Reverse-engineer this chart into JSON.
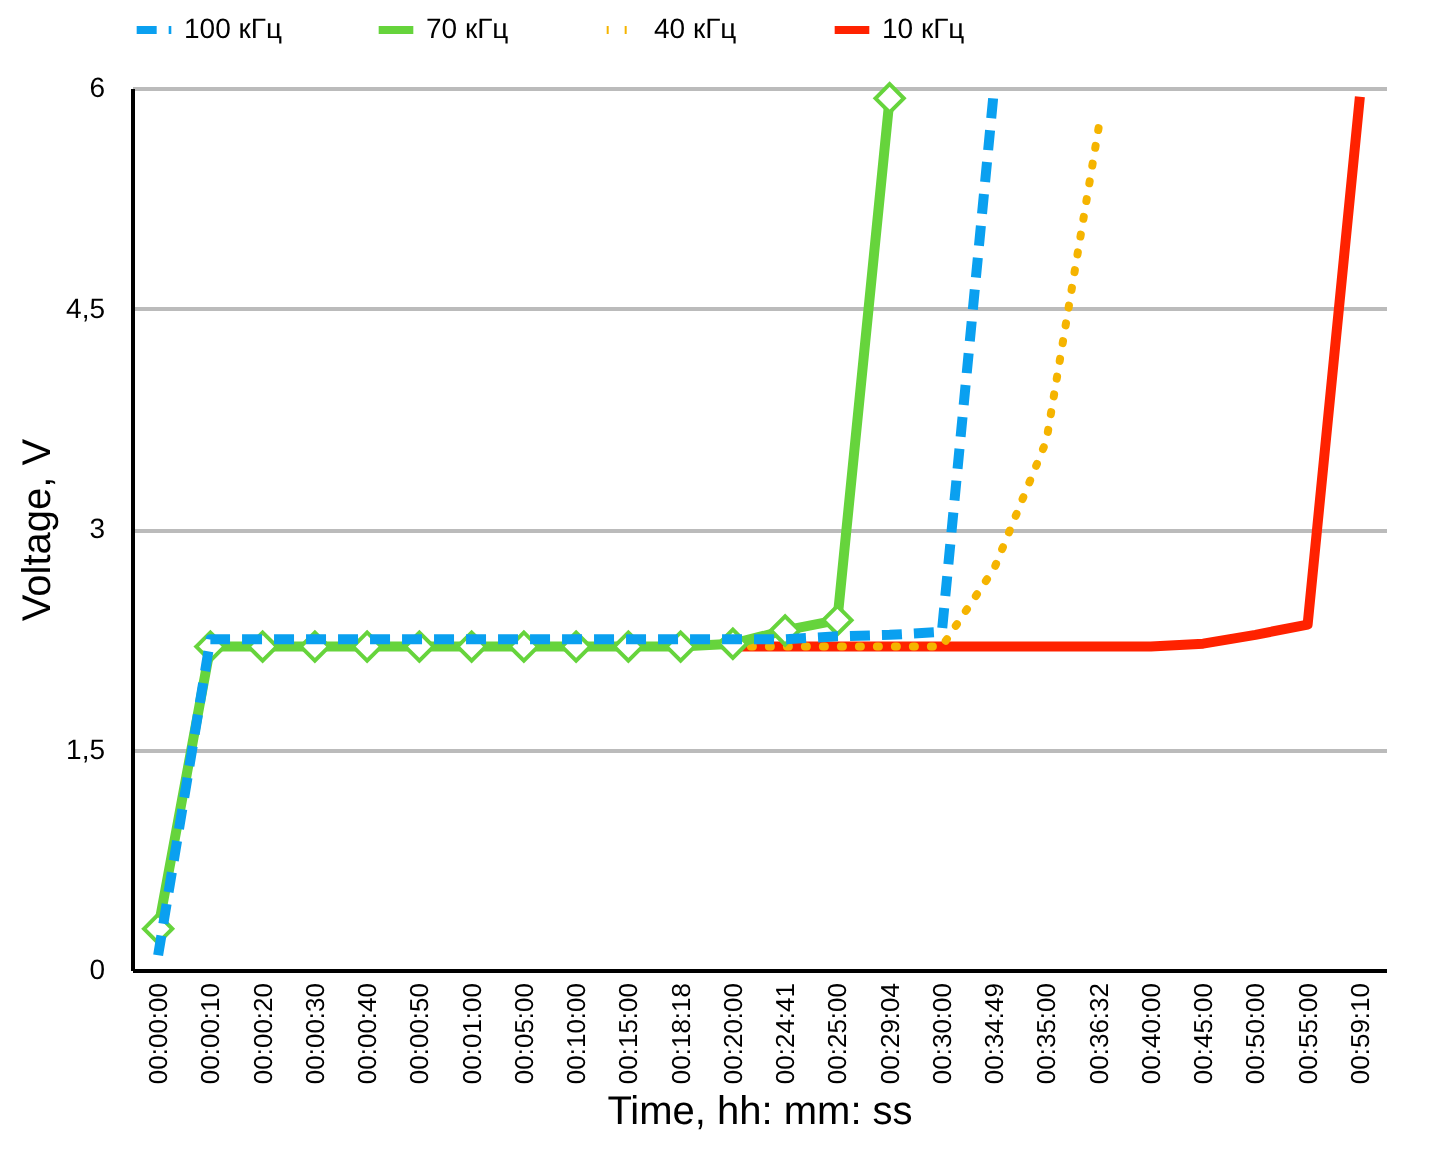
{
  "chart_data": {
    "type": "line",
    "xlabel": "Time, hh: mm: ss",
    "ylabel": "Voltage, V",
    "categories": [
      "00:00:00",
      "00:00:10",
      "00:00:20",
      "00:00:30",
      "00:00:40",
      "00:00:50",
      "00:01:00",
      "00:05:00",
      "00:10:00",
      "00:15:00",
      "00:18:18",
      "00:20:00",
      "00:24:41",
      "00:25:00",
      "00:29:04",
      "00:30:00",
      "00:34:49",
      "00:35:00",
      "00:36:32",
      "00:40:00",
      "00:45:00",
      "00:50:00",
      "00:55:00",
      "00:59:10"
    ],
    "series": [
      {
        "name": "100 кГц",
        "color": "#0aa0f0",
        "line_style": "dashed",
        "values": [
          0.1,
          2.25,
          2.25,
          2.25,
          2.25,
          2.25,
          2.25,
          2.25,
          2.25,
          2.25,
          2.25,
          2.25,
          2.25,
          2.27,
          2.28,
          2.3,
          6.0,
          null,
          null,
          null,
          null,
          null,
          null,
          null
        ]
      },
      {
        "name": "70 кГц",
        "color": "#66d43c",
        "line_style": "solid",
        "marker": "diamond",
        "values": [
          0.28,
          2.2,
          2.2,
          2.2,
          2.2,
          2.2,
          2.2,
          2.2,
          2.2,
          2.2,
          2.2,
          2.22,
          2.31,
          2.38,
          5.93,
          null,
          null,
          null,
          null,
          null,
          null,
          null,
          null,
          null
        ]
      },
      {
        "name": "40 кГц",
        "color": "#f5b400",
        "line_style": "dotted",
        "values": [
          null,
          null,
          null,
          null,
          null,
          null,
          null,
          null,
          null,
          null,
          null,
          2.2,
          2.2,
          2.2,
          2.2,
          2.2,
          2.73,
          3.6,
          5.73,
          null,
          null,
          null,
          null,
          null
        ]
      },
      {
        "name": "10 кГц",
        "color": "#ff2200",
        "line_style": "solid",
        "values": [
          null,
          null,
          null,
          null,
          null,
          null,
          null,
          null,
          null,
          null,
          null,
          2.2,
          2.2,
          2.2,
          2.2,
          2.2,
          2.2,
          2.2,
          2.2,
          2.2,
          2.22,
          2.28,
          2.35,
          5.94
        ]
      }
    ],
    "ylim": [
      0,
      6
    ],
    "yticks": [
      0,
      {
        "value": 1.5,
        "label": "1,5"
      },
      3,
      {
        "value": 4.5,
        "label": "4,5"
      },
      6
    ],
    "grid": "y",
    "legend": "top"
  }
}
